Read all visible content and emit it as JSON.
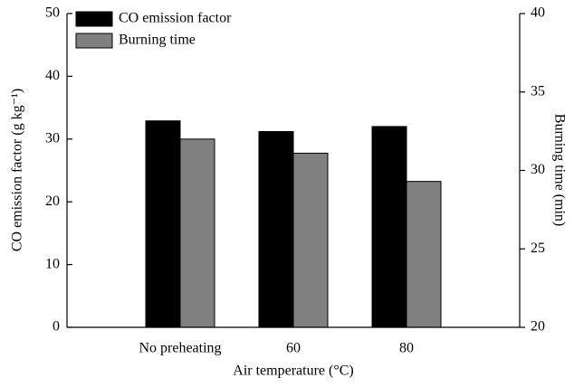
{
  "chart_data": {
    "type": "bar",
    "x_label": "Air temperature (°C)",
    "y_label": "CO emission factor (g kg⁻¹)",
    "y2_label": "Burning time (min)",
    "categories": [
      "No preheating",
      "60",
      "80"
    ],
    "series": [
      {
        "name": "CO emission factor",
        "color": "#000000",
        "values": [
          32.9,
          31.2,
          32.0
        ]
      },
      {
        "name": "Burning time",
        "color": "#808080",
        "values": [
          32.0,
          31.1,
          29.3
        ],
        "axis": "y2"
      }
    ],
    "ylim": [
      0,
      50
    ],
    "yticks": [
      0,
      10,
      20,
      30,
      40,
      50
    ],
    "y2lim": [
      20,
      40
    ],
    "y2ticks": [
      20,
      25,
      30,
      35,
      40
    ],
    "legend": "top-left"
  }
}
